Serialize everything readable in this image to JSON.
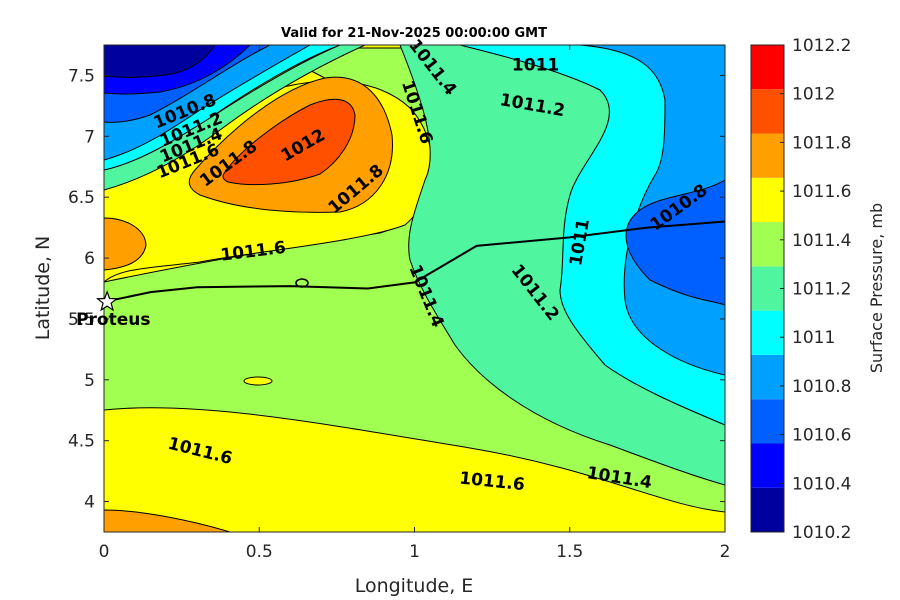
{
  "chart_data": {
    "type": "contour",
    "title": "Valid for 21-Nov-2025 00:00:00 GMT",
    "xlabel": "Longitude, E",
    "ylabel": "Latitude, N",
    "xlim": [
      0,
      2
    ],
    "ylim": [
      3.75,
      7.75
    ],
    "xticks": [
      "0",
      "0.5",
      "1",
      "1.5",
      "2"
    ],
    "yticks": [
      "4",
      "4.5",
      "5",
      "5.5",
      "6",
      "6.5",
      "7",
      "7.5"
    ],
    "colorbar": {
      "label": "Surface Pressure, mb",
      "ticks": [
        "1010.2",
        "1010.4",
        "1010.6",
        "1010.8",
        "1011",
        "1011.2",
        "1011.4",
        "1011.6",
        "1011.8",
        "1012",
        "1012.2"
      ],
      "colors": [
        "#00009f",
        "#0000ff",
        "#0060ff",
        "#00a0ff",
        "#00ffff",
        "#50f5a0",
        "#a0ff50",
        "#ffff00",
        "#ffa000",
        "#ff5000",
        "#ff0000"
      ]
    },
    "contour_labels": [
      {
        "text": "1010.8",
        "x": 0.26,
        "y": 7.21,
        "angle": -22
      },
      {
        "text": "1011.2",
        "x": 0.28,
        "y": 7.06,
        "angle": -22
      },
      {
        "text": "1011.4",
        "x": 0.28,
        "y": 6.93,
        "angle": -22
      },
      {
        "text": "1011.6",
        "x": 0.27,
        "y": 6.8,
        "angle": -22
      },
      {
        "text": "1011.8",
        "x": 0.4,
        "y": 6.78,
        "angle": -36
      },
      {
        "text": "1012",
        "x": 0.64,
        "y": 6.93,
        "angle": -30
      },
      {
        "text": "1011.8",
        "x": 0.81,
        "y": 6.57,
        "angle": -40
      },
      {
        "text": "1011.4",
        "x": 1.06,
        "y": 7.57,
        "angle": 52
      },
      {
        "text": "1011.6",
        "x": 1.01,
        "y": 7.2,
        "angle": 72
      },
      {
        "text": "1011",
        "x": 1.39,
        "y": 7.59,
        "angle": 0
      },
      {
        "text": "1011.2",
        "x": 1.38,
        "y": 7.26,
        "angle": 10
      },
      {
        "text": "1011.6",
        "x": 0.48,
        "y": 6.06,
        "angle": -7
      },
      {
        "text": "1011",
        "x": 1.53,
        "y": 6.13,
        "angle": -80
      },
      {
        "text": "1010.8",
        "x": 1.85,
        "y": 6.42,
        "angle": -36
      },
      {
        "text": "1011.4",
        "x": 1.04,
        "y": 5.69,
        "angle": 68
      },
      {
        "text": "1011.2",
        "x": 1.39,
        "y": 5.72,
        "angle": 52
      },
      {
        "text": "1011.6",
        "x": 0.31,
        "y": 4.42,
        "angle": 14
      },
      {
        "text": "1011.6",
        "x": 1.25,
        "y": 4.17,
        "angle": 6
      },
      {
        "text": "1011.4",
        "x": 1.66,
        "y": 4.2,
        "angle": 9
      }
    ],
    "site": {
      "name": "Proteus",
      "lon": 0.01,
      "lat": 5.64
    },
    "track": [
      [
        0.0,
        5.64
      ],
      [
        0.15,
        5.72
      ],
      [
        0.3,
        5.76
      ],
      [
        0.6,
        5.77
      ],
      [
        0.85,
        5.75
      ],
      [
        1.0,
        5.8
      ],
      [
        1.2,
        6.1
      ],
      [
        1.5,
        6.17
      ],
      [
        1.75,
        6.25
      ],
      [
        2.0,
        6.3
      ]
    ]
  }
}
